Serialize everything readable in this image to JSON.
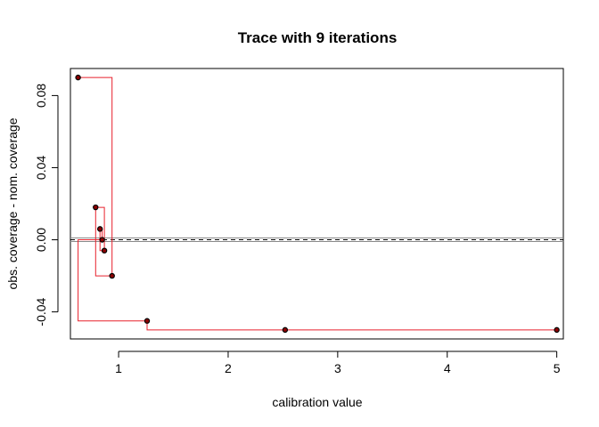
{
  "chart_data": {
    "type": "scatter",
    "title": "Trace with 9 iterations",
    "xlabel": "calibration value",
    "ylabel": "obs. coverage - nom. coverage",
    "xlim": [
      0.56,
      5.06
    ],
    "ylim": [
      -0.055,
      0.095
    ],
    "x_ticks": [
      1,
      2,
      3,
      4,
      5
    ],
    "x_tick_labels": [
      "1",
      "2",
      "3",
      "4",
      "5"
    ],
    "y_ticks": [
      -0.04,
      0.0,
      0.04,
      0.08
    ],
    "y_tick_labels": [
      "-0.04",
      "0.00",
      "0.04",
      "0.08"
    ],
    "points": [
      {
        "x": 0.63,
        "y": 0.09
      },
      {
        "x": 0.79,
        "y": 0.018
      },
      {
        "x": 0.83,
        "y": 0.006
      },
      {
        "x": 0.85,
        "y": 0.0
      },
      {
        "x": 0.87,
        "y": -0.006
      },
      {
        "x": 0.94,
        "y": -0.02
      },
      {
        "x": 1.26,
        "y": -0.045
      },
      {
        "x": 2.52,
        "y": -0.05
      },
      {
        "x": 5.0,
        "y": -0.05
      }
    ],
    "step_trace": [
      [
        0.63,
        0.09
      ],
      [
        0.94,
        0.09
      ],
      [
        0.94,
        -0.02
      ],
      [
        0.79,
        -0.02
      ],
      [
        0.79,
        0.018
      ],
      [
        0.87,
        0.018
      ],
      [
        0.87,
        -0.006
      ],
      [
        0.83,
        -0.006
      ],
      [
        0.83,
        0.006
      ],
      [
        0.85,
        0.006
      ],
      [
        0.85,
        0.0
      ],
      [
        0.63,
        0.0
      ],
      [
        0.63,
        -0.045
      ],
      [
        1.26,
        -0.045
      ],
      [
        1.26,
        -0.05
      ],
      [
        5.0,
        -0.05
      ]
    ],
    "reference_lines": [
      {
        "y": 0.0,
        "style": "dashed",
        "color": "#000000"
      },
      {
        "y": 0.001,
        "style": "solid",
        "color": "#888888"
      },
      {
        "y": -0.001,
        "style": "solid",
        "color": "#888888"
      }
    ],
    "colors": {
      "trace": "#e8212c",
      "points": "#000000",
      "point_fill": "#8b0000"
    },
    "grid": false,
    "legend": "none"
  }
}
